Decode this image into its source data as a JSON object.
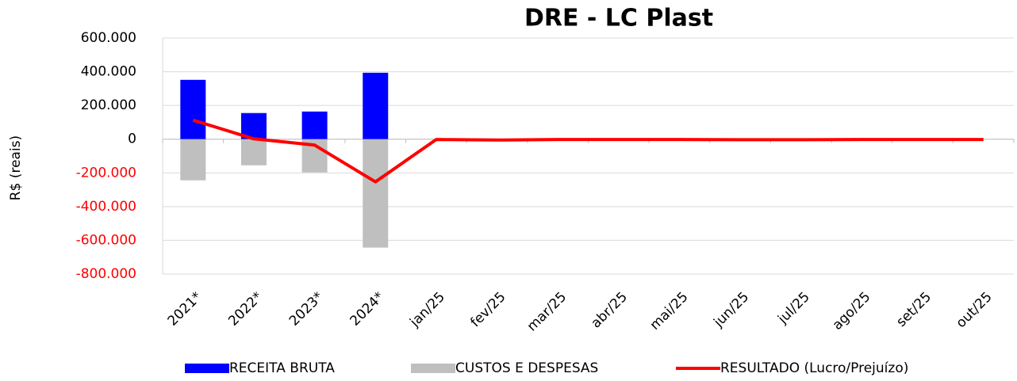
{
  "chart_data": {
    "type": "combo",
    "title": "DRE - LC Plast",
    "y_label": "R$ (reais)",
    "categories": [
      "2021*",
      "2022*",
      "2023*",
      "2024*",
      "jan/25",
      "fev/25",
      "mar/25",
      "abr/25",
      "mai/25",
      "jun/25",
      "jul/25",
      "ago/25",
      "set/25",
      "out/25"
    ],
    "series": [
      {
        "name": "RECEITA BRUTA",
        "type": "bar",
        "color": "#0000ff",
        "values": [
          352000,
          155000,
          164000,
          394000,
          0,
          0,
          0,
          0,
          0,
          0,
          0,
          0,
          0,
          0
        ]
      },
      {
        "name": "CUSTOS E DESPESAS",
        "type": "bar",
        "color": "#bfbfbf",
        "values": [
          -244000,
          -155000,
          -197000,
          -643000,
          0,
          0,
          0,
          0,
          0,
          0,
          0,
          0,
          0,
          0
        ]
      },
      {
        "name": "RESULTADO (Lucro/Prejuízo)",
        "type": "line",
        "color": "#ff0000",
        "values": [
          113000,
          2000,
          -35000,
          -253000,
          -2000,
          -5000,
          -2000,
          -2000,
          -2000,
          -3000,
          -3000,
          -2000,
          -2000,
          -2000
        ]
      }
    ],
    "ylim": [
      -800000,
      600000
    ],
    "yticks": [
      {
        "value": -800000,
        "label": "-800.000"
      },
      {
        "value": -600000,
        "label": "-600.000"
      },
      {
        "value": -400000,
        "label": "-400.000"
      },
      {
        "value": -200000,
        "label": "-200.000"
      },
      0,
      {
        "value": 200000,
        "label": "200.000"
      },
      {
        "value": 400000,
        "label": "400.000"
      },
      {
        "value": 600000,
        "label": "600.000"
      }
    ],
    "negative_tick_color": "#ff0000",
    "grid": true,
    "legend": "bottom"
  }
}
